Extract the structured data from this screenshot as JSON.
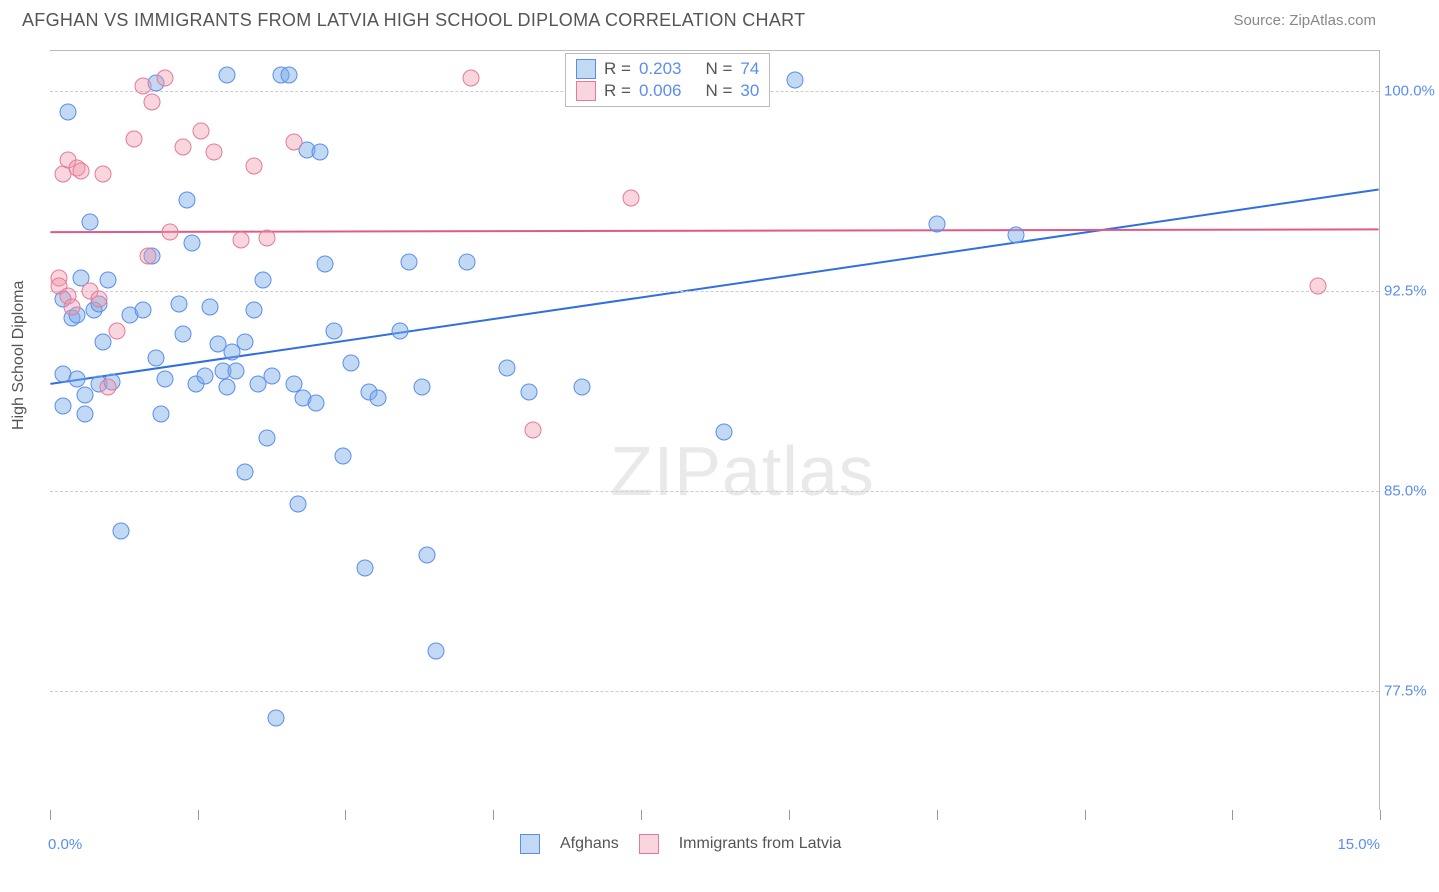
{
  "title": "AFGHAN VS IMMIGRANTS FROM LATVIA HIGH SCHOOL DIPLOMA CORRELATION CHART",
  "source": "Source: ZipAtlas.com",
  "y_axis_label": "High School Diploma",
  "watermark_bold": "ZIP",
  "watermark_thin": "atlas",
  "chart": {
    "type": "scatter",
    "background_color": "#ffffff",
    "grid_color": "#cccccc",
    "xlim": [
      0.0,
      15.0
    ],
    "ylim": [
      73.0,
      101.5
    ],
    "x_tick_positions": [
      0.0,
      1.67,
      3.33,
      5.0,
      6.67,
      8.33,
      10.0,
      11.67,
      13.33,
      15.0
    ],
    "x_labels": {
      "start": "0.0%",
      "end": "15.0%"
    },
    "y_ticks": [
      {
        "v": 77.5,
        "label": "77.5%"
      },
      {
        "v": 85.0,
        "label": "85.0%"
      },
      {
        "v": 92.5,
        "label": "92.5%"
      },
      {
        "v": 100.0,
        "label": "100.0%"
      }
    ],
    "point_radius": 8.5,
    "series": [
      {
        "name": "Afghans",
        "color_fill": "rgba(120,170,230,0.45)",
        "color_stroke": "#5b8def",
        "R": "0.203",
        "N": "74",
        "trend": {
          "y_at_xmin": 89.0,
          "y_at_xmax": 96.3,
          "stroke": "#2f6fe0",
          "width": 2
        },
        "points": [
          [
            0.15,
            92.2
          ],
          [
            0.15,
            89.4
          ],
          [
            0.15,
            88.2
          ],
          [
            0.2,
            99.2
          ],
          [
            0.25,
            91.5
          ],
          [
            0.3,
            91.6
          ],
          [
            0.3,
            89.2
          ],
          [
            0.35,
            93.0
          ],
          [
            0.4,
            88.6
          ],
          [
            0.4,
            87.9
          ],
          [
            0.45,
            95.1
          ],
          [
            0.5,
            91.8
          ],
          [
            0.55,
            89.0
          ],
          [
            0.55,
            92.0
          ],
          [
            0.6,
            90.6
          ],
          [
            0.65,
            92.9
          ],
          [
            0.7,
            89.1
          ],
          [
            0.8,
            83.5
          ],
          [
            0.9,
            91.6
          ],
          [
            1.05,
            91.8
          ],
          [
            1.15,
            93.8
          ],
          [
            1.2,
            90.0
          ],
          [
            1.25,
            87.9
          ],
          [
            1.3,
            89.2
          ],
          [
            1.45,
            92.0
          ],
          [
            1.5,
            90.9
          ],
          [
            1.55,
            95.9
          ],
          [
            1.6,
            94.3
          ],
          [
            1.65,
            89.0
          ],
          [
            1.75,
            89.3
          ],
          [
            1.8,
            91.9
          ],
          [
            1.9,
            90.5
          ],
          [
            1.95,
            89.5
          ],
          [
            2.0,
            88.9
          ],
          [
            2.05,
            90.2
          ],
          [
            2.1,
            89.5
          ],
          [
            2.2,
            85.7
          ],
          [
            2.2,
            90.6
          ],
          [
            2.3,
            91.8
          ],
          [
            2.35,
            89.0
          ],
          [
            2.4,
            92.9
          ],
          [
            2.45,
            87.0
          ],
          [
            2.5,
            89.3
          ],
          [
            2.55,
            76.5
          ],
          [
            2.6,
            100.6
          ],
          [
            2.7,
            100.6
          ],
          [
            2.75,
            89.0
          ],
          [
            2.8,
            84.5
          ],
          [
            2.85,
            88.5
          ],
          [
            2.9,
            97.8
          ],
          [
            3.0,
            88.3
          ],
          [
            3.05,
            97.7
          ],
          [
            3.1,
            93.5
          ],
          [
            3.2,
            91.0
          ],
          [
            3.3,
            86.3
          ],
          [
            3.4,
            89.8
          ],
          [
            3.55,
            82.1
          ],
          [
            3.6,
            88.7
          ],
          [
            3.7,
            88.5
          ],
          [
            3.95,
            91.0
          ],
          [
            4.05,
            93.6
          ],
          [
            4.2,
            88.9
          ],
          [
            4.25,
            82.6
          ],
          [
            4.35,
            79.0
          ],
          [
            4.7,
            93.6
          ],
          [
            5.15,
            89.6
          ],
          [
            5.4,
            88.7
          ],
          [
            6.0,
            88.9
          ],
          [
            7.6,
            87.2
          ],
          [
            8.4,
            100.4
          ],
          [
            10.0,
            95.0
          ],
          [
            10.9,
            94.6
          ],
          [
            2.0,
            100.6
          ],
          [
            1.2,
            100.3
          ]
        ]
      },
      {
        "name": "Immigrants from Latvia",
        "color_fill": "rgba(240,150,170,0.40)",
        "color_stroke": "#e57a9a",
        "R": "0.006",
        "N": "30",
        "trend": {
          "y_at_xmin": 94.7,
          "y_at_xmax": 94.8,
          "stroke": "#e05a85",
          "width": 2
        },
        "points": [
          [
            0.1,
            93.0
          ],
          [
            0.1,
            92.7
          ],
          [
            0.15,
            96.9
          ],
          [
            0.2,
            92.3
          ],
          [
            0.2,
            97.4
          ],
          [
            0.25,
            91.9
          ],
          [
            0.3,
            97.1
          ],
          [
            0.35,
            97.0
          ],
          [
            0.45,
            92.5
          ],
          [
            0.55,
            92.2
          ],
          [
            0.6,
            96.9
          ],
          [
            0.65,
            88.9
          ],
          [
            0.75,
            91.0
          ],
          [
            0.95,
            98.2
          ],
          [
            1.05,
            100.2
          ],
          [
            1.1,
            93.8
          ],
          [
            1.15,
            99.6
          ],
          [
            1.3,
            100.5
          ],
          [
            1.35,
            94.7
          ],
          [
            1.5,
            97.9
          ],
          [
            1.7,
            98.5
          ],
          [
            1.85,
            97.7
          ],
          [
            2.15,
            94.4
          ],
          [
            2.3,
            97.2
          ],
          [
            2.45,
            94.5
          ],
          [
            2.75,
            98.1
          ],
          [
            4.75,
            100.5
          ],
          [
            5.45,
            87.3
          ],
          [
            6.55,
            96.0
          ],
          [
            14.3,
            92.7
          ]
        ]
      }
    ],
    "stats_legend": {
      "rows": [
        {
          "swatch": "blue",
          "r_label": "R =",
          "r_val": "0.203",
          "n_label": "N =",
          "n_val": "74"
        },
        {
          "swatch": "pink",
          "r_label": "R =",
          "r_val": "0.006",
          "n_label": "N =",
          "n_val": "30"
        }
      ]
    },
    "bottom_legend": [
      {
        "swatch": "blue",
        "label": "Afghans"
      },
      {
        "swatch": "pink",
        "label": "Immigrants from Latvia"
      }
    ]
  }
}
